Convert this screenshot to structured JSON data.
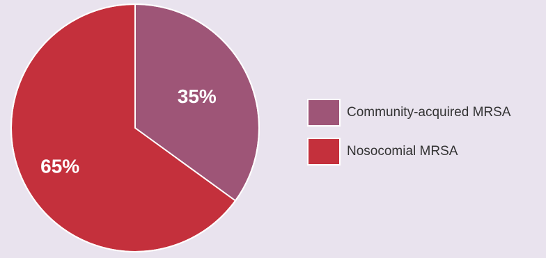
{
  "chart_data": {
    "type": "pie",
    "title": "",
    "slices": [
      {
        "label": "Community-acquired MRSA",
        "value": 35,
        "value_label": "35%",
        "color": "#9e5577"
      },
      {
        "label": "Nosocomial MRSA",
        "value": 65,
        "value_label": "65%",
        "color": "#c4303c"
      }
    ],
    "start_angle_deg": 0,
    "direction": "clockwise",
    "legend_position": "right",
    "slice_border_color": "#ffffff"
  },
  "background_color": "#e9e3ee"
}
